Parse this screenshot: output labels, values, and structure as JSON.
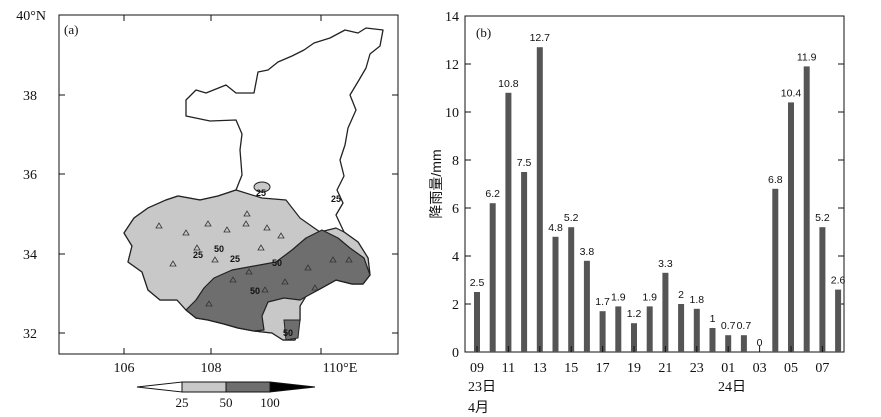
{
  "chart_data": [
    {
      "type": "map",
      "panel_label": "(a)",
      "title": "",
      "x_tick_labels": [
        "106",
        "108",
        "110°E"
      ],
      "y_tick_labels": [
        "40°N",
        "38",
        "36",
        "34",
        "32"
      ],
      "xlim": [
        105,
        111.5
      ],
      "ylim": [
        31.5,
        40
      ],
      "contour_labels": [
        "25",
        "25",
        "50",
        "25",
        "25",
        "50",
        "50",
        "50"
      ],
      "colorbar": {
        "tick_labels": [
          "25",
          "50",
          "100"
        ],
        "levels": [
          25,
          50,
          100
        ]
      },
      "colors": {
        "light": "#c8c8c8",
        "dark": "#6e6e6e",
        "outline": "#222222"
      }
    },
    {
      "type": "bar",
      "panel_label": "(b)",
      "title": "",
      "ylabel": "降雨量/mm",
      "xlabel": "",
      "ylim": [
        0,
        14
      ],
      "yticks": [
        0,
        2,
        4,
        6,
        8,
        10,
        12,
        14
      ],
      "values": [
        2.5,
        6.2,
        10.8,
        7.5,
        12.7,
        4.8,
        5.2,
        3.8,
        1.7,
        1.9,
        1.2,
        1.9,
        3.3,
        2,
        1.8,
        1,
        0.7,
        0.7,
        0,
        6.8,
        10.4,
        11.9,
        5.2,
        2.6
      ],
      "value_labels": [
        "2.5",
        "6.2",
        "10.8",
        "7.5",
        "12.7",
        "4.8",
        "5.2",
        "3.8",
        "1.7",
        "1.9",
        "1.2",
        "1.9",
        "3.3",
        "2",
        "1.8",
        "1",
        "0.7",
        "0.7",
        "0",
        "6.8",
        "10.4",
        "11.9",
        "5.2",
        "2.6"
      ],
      "x_tick_labels": [
        "09",
        "11",
        "13",
        "15",
        "17",
        "19",
        "21",
        "23",
        "01",
        "03",
        "05",
        "07"
      ],
      "date_labels": [
        "23日",
        "4月",
        "24日"
      ],
      "colors": {
        "bar": "#555555"
      }
    }
  ]
}
